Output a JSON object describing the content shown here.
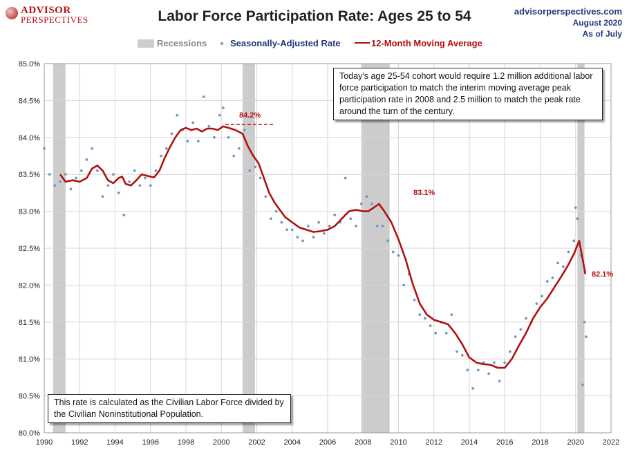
{
  "header": {
    "logo_line1": "ADVISOR",
    "logo_line2": "PERSPECTIVES",
    "title": "Labor Force Participation Rate: Ages 25 to 54",
    "source_site": "advisorperspectives.com",
    "source_date": "August 2020",
    "source_asof": "As of July"
  },
  "legend": {
    "recessions": "Recessions",
    "seasonal": "Seasonally-Adjusted Rate",
    "moving_avg": "12-Month Moving Average"
  },
  "annotations": {
    "note_top": "Today's age 25-54  cohort would require 1.2 million additional labor force participation to match the interim moving average peak participation rate in 2008  and 2.5  million to match the peak rate around the turn of the century.",
    "note_bottom": "This rate is calculated as the Civilian Labor Force divided by the Civilian Noninstitutional Population.",
    "peak_2000_label": "84.2%",
    "peak_2008_label": "83.1%",
    "latest_label": "82.1%"
  },
  "colors": {
    "scatter": "#6f98c6",
    "moving_avg": "#b01010",
    "recession": "#cccccc",
    "label_red": "#b01010",
    "legend_blue": "#1f3a7a",
    "legend_red": "#b01010",
    "legend_gray": "#888888",
    "grid": "#d6d6d6"
  },
  "chart_data": {
    "type": "line",
    "title": "Labor Force Participation Rate: Ages 25 to 54",
    "xlim": [
      1990,
      2022
    ],
    "ylim": [
      80.0,
      85.0
    ],
    "x_ticks": [
      1990,
      1992,
      1994,
      1996,
      1998,
      2000,
      2002,
      2004,
      2006,
      2008,
      2010,
      2012,
      2014,
      2016,
      2018,
      2020,
      2022
    ],
    "y_ticks": [
      "80.0%",
      "80.5%",
      "81.0%",
      "81.5%",
      "82.0%",
      "82.5%",
      "83.0%",
      "83.5%",
      "84.0%",
      "84.5%",
      "85.0%"
    ],
    "grid": true,
    "legend_position": "top",
    "recessions": [
      [
        1990.5,
        1991.2
      ],
      [
        2001.2,
        2001.9
      ],
      [
        2007.9,
        2009.5
      ],
      [
        2020.1,
        2020.5
      ]
    ],
    "series": [
      {
        "name": "12-Month Moving Average",
        "points": [
          [
            1990.9,
            83.5
          ],
          [
            1991.2,
            83.4
          ],
          [
            1991.6,
            83.42
          ],
          [
            1992.0,
            83.4
          ],
          [
            1992.4,
            83.45
          ],
          [
            1992.7,
            83.58
          ],
          [
            1993.0,
            83.62
          ],
          [
            1993.3,
            83.55
          ],
          [
            1993.6,
            83.42
          ],
          [
            1993.9,
            83.38
          ],
          [
            1994.2,
            83.45
          ],
          [
            1994.4,
            83.47
          ],
          [
            1994.6,
            83.37
          ],
          [
            1994.9,
            83.35
          ],
          [
            1995.2,
            83.42
          ],
          [
            1995.5,
            83.5
          ],
          [
            1995.8,
            83.48
          ],
          [
            1996.2,
            83.46
          ],
          [
            1996.5,
            83.55
          ],
          [
            1996.8,
            83.72
          ],
          [
            1997.1,
            83.87
          ],
          [
            1997.4,
            84.0
          ],
          [
            1997.7,
            84.1
          ],
          [
            1998.0,
            84.13
          ],
          [
            1998.3,
            84.1
          ],
          [
            1998.6,
            84.12
          ],
          [
            1998.9,
            84.08
          ],
          [
            1999.2,
            84.12
          ],
          [
            1999.5,
            84.12
          ],
          [
            1999.8,
            84.1
          ],
          [
            2000.1,
            84.15
          ],
          [
            2000.4,
            84.13
          ],
          [
            2000.8,
            84.1
          ],
          [
            2001.2,
            84.05
          ],
          [
            2001.5,
            83.88
          ],
          [
            2001.8,
            83.75
          ],
          [
            2002.1,
            83.65
          ],
          [
            2002.4,
            83.45
          ],
          [
            2002.7,
            83.25
          ],
          [
            2003.0,
            83.12
          ],
          [
            2003.3,
            83.02
          ],
          [
            2003.6,
            82.92
          ],
          [
            2004.0,
            82.85
          ],
          [
            2004.4,
            82.78
          ],
          [
            2004.8,
            82.75
          ],
          [
            2005.2,
            82.72
          ],
          [
            2005.6,
            82.73
          ],
          [
            2006.0,
            82.75
          ],
          [
            2006.4,
            82.8
          ],
          [
            2006.8,
            82.9
          ],
          [
            2007.2,
            83.0
          ],
          [
            2007.6,
            83.02
          ],
          [
            2008.0,
            83.0
          ],
          [
            2008.3,
            83.0
          ],
          [
            2008.6,
            83.05
          ],
          [
            2008.9,
            83.1
          ],
          [
            2009.2,
            83.0
          ],
          [
            2009.6,
            82.85
          ],
          [
            2010.0,
            82.62
          ],
          [
            2010.4,
            82.35
          ],
          [
            2010.8,
            82.02
          ],
          [
            2011.2,
            81.75
          ],
          [
            2011.6,
            81.6
          ],
          [
            2012.0,
            81.53
          ],
          [
            2012.4,
            81.5
          ],
          [
            2012.8,
            81.47
          ],
          [
            2013.2,
            81.35
          ],
          [
            2013.6,
            81.2
          ],
          [
            2014.0,
            81.02
          ],
          [
            2014.4,
            80.95
          ],
          [
            2014.8,
            80.93
          ],
          [
            2015.2,
            80.92
          ],
          [
            2015.6,
            80.88
          ],
          [
            2016.0,
            80.88
          ],
          [
            2016.4,
            81.0
          ],
          [
            2016.8,
            81.18
          ],
          [
            2017.2,
            81.35
          ],
          [
            2017.6,
            81.55
          ],
          [
            2018.0,
            81.7
          ],
          [
            2018.4,
            81.82
          ],
          [
            2018.8,
            81.97
          ],
          [
            2019.2,
            82.12
          ],
          [
            2019.6,
            82.28
          ],
          [
            2019.9,
            82.42
          ],
          [
            2020.2,
            82.6
          ],
          [
            2020.4,
            82.35
          ],
          [
            2020.55,
            82.15
          ]
        ]
      },
      {
        "name": "Seasonally-Adjusted Rate",
        "points": [
          [
            1990.0,
            83.85
          ],
          [
            1990.3,
            83.5
          ],
          [
            1990.6,
            83.35
          ],
          [
            1990.9,
            83.4
          ],
          [
            1991.2,
            83.5
          ],
          [
            1991.5,
            83.3
          ],
          [
            1991.8,
            83.45
          ],
          [
            1992.1,
            83.55
          ],
          [
            1992.4,
            83.7
          ],
          [
            1992.7,
            83.85
          ],
          [
            1993.0,
            83.55
          ],
          [
            1993.3,
            83.2
          ],
          [
            1993.6,
            83.35
          ],
          [
            1993.9,
            83.5
          ],
          [
            1994.2,
            83.25
          ],
          [
            1994.5,
            82.95
          ],
          [
            1994.8,
            83.4
          ],
          [
            1995.1,
            83.55
          ],
          [
            1995.4,
            83.35
          ],
          [
            1995.7,
            83.45
          ],
          [
            1996.0,
            83.35
          ],
          [
            1996.3,
            83.55
          ],
          [
            1996.6,
            83.75
          ],
          [
            1996.9,
            83.85
          ],
          [
            1997.2,
            84.05
          ],
          [
            1997.5,
            84.3
          ],
          [
            1997.8,
            84.1
          ],
          [
            1998.1,
            83.95
          ],
          [
            1998.4,
            84.2
          ],
          [
            1998.7,
            83.95
          ],
          [
            1999.0,
            84.55
          ],
          [
            1999.3,
            84.15
          ],
          [
            1999.6,
            84.0
          ],
          [
            1999.9,
            84.3
          ],
          [
            2000.1,
            84.4
          ],
          [
            2000.4,
            84.0
          ],
          [
            2000.7,
            83.75
          ],
          [
            2001.0,
            83.85
          ],
          [
            2001.3,
            84.1
          ],
          [
            2001.6,
            83.55
          ],
          [
            2001.9,
            83.6
          ],
          [
            2002.2,
            83.45
          ],
          [
            2002.5,
            83.2
          ],
          [
            2002.8,
            82.9
          ],
          [
            2003.1,
            83.0
          ],
          [
            2003.4,
            82.85
          ],
          [
            2003.7,
            82.75
          ],
          [
            2004.0,
            82.75
          ],
          [
            2004.3,
            82.65
          ],
          [
            2004.6,
            82.6
          ],
          [
            2004.9,
            82.8
          ],
          [
            2005.2,
            82.65
          ],
          [
            2005.5,
            82.85
          ],
          [
            2005.8,
            82.7
          ],
          [
            2006.1,
            82.8
          ],
          [
            2006.4,
            82.95
          ],
          [
            2006.7,
            82.85
          ],
          [
            2007.0,
            83.45
          ],
          [
            2007.3,
            82.9
          ],
          [
            2007.6,
            82.8
          ],
          [
            2007.9,
            83.1
          ],
          [
            2008.2,
            83.2
          ],
          [
            2008.5,
            83.1
          ],
          [
            2008.8,
            82.8
          ],
          [
            2009.1,
            82.8
          ],
          [
            2009.4,
            82.6
          ],
          [
            2009.7,
            82.45
          ],
          [
            2010.0,
            82.4
          ],
          [
            2010.3,
            82.0
          ],
          [
            2010.6,
            82.15
          ],
          [
            2010.9,
            81.8
          ],
          [
            2011.2,
            81.6
          ],
          [
            2011.5,
            81.55
          ],
          [
            2011.8,
            81.45
          ],
          [
            2012.1,
            81.35
          ],
          [
            2012.4,
            81.5
          ],
          [
            2012.7,
            81.35
          ],
          [
            2013.0,
            81.6
          ],
          [
            2013.3,
            81.1
          ],
          [
            2013.6,
            81.05
          ],
          [
            2013.9,
            80.85
          ],
          [
            2014.2,
            80.6
          ],
          [
            2014.5,
            80.85
          ],
          [
            2014.8,
            80.95
          ],
          [
            2015.1,
            80.8
          ],
          [
            2015.4,
            80.95
          ],
          [
            2015.7,
            80.7
          ],
          [
            2016.0,
            80.95
          ],
          [
            2016.3,
            81.1
          ],
          [
            2016.6,
            81.3
          ],
          [
            2016.9,
            81.4
          ],
          [
            2017.2,
            81.55
          ],
          [
            2017.5,
            81.5
          ],
          [
            2017.8,
            81.75
          ],
          [
            2018.1,
            81.85
          ],
          [
            2018.4,
            82.05
          ],
          [
            2018.7,
            82.1
          ],
          [
            2019.0,
            82.3
          ],
          [
            2019.3,
            82.25
          ],
          [
            2019.6,
            82.45
          ],
          [
            2019.9,
            82.6
          ],
          [
            2020.0,
            83.05
          ],
          [
            2020.1,
            82.9
          ],
          [
            2020.3,
            82.4
          ],
          [
            2020.4,
            80.65
          ],
          [
            2020.5,
            81.5
          ],
          [
            2020.6,
            81.3
          ]
        ]
      }
    ]
  }
}
